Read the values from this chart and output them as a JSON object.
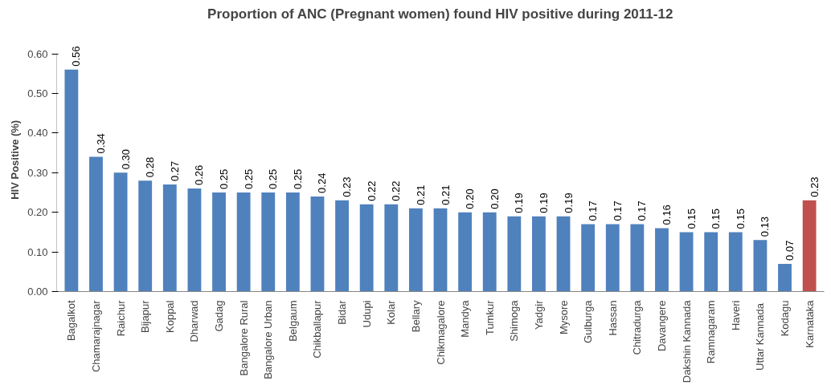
{
  "chart_data": {
    "type": "bar",
    "title": "Proportion of ANC (Pregnant women) found HIV positive during 2011-12",
    "ylabel": "HIV Positive  (%)",
    "categories": [
      "Bagalkot",
      "Chamarajnagar",
      "Raichur",
      "Bijapur",
      "Koppal",
      "Dharwad",
      "Gadag",
      "Bangalore Rural",
      "Bangalore Urban",
      "Belgaum",
      "Chikballapur",
      "Bidar",
      "Udupi",
      "Kolar",
      "Bellary",
      "Chikmagalore",
      "Mandya",
      "Tumkur",
      "Shimoga",
      "Yadgir",
      "Mysore",
      "Gulburga",
      "Hassan",
      "Chitradurga",
      "Davangere",
      "Dakshin Kannada",
      "Ramnagaram",
      "Haveri",
      "Uttar  Kannada",
      "Kodagu",
      "Karnataka"
    ],
    "values": [
      0.56,
      0.34,
      0.3,
      0.28,
      0.27,
      0.26,
      0.25,
      0.25,
      0.25,
      0.25,
      0.24,
      0.23,
      0.22,
      0.22,
      0.21,
      0.21,
      0.2,
      0.2,
      0.19,
      0.19,
      0.19,
      0.17,
      0.17,
      0.17,
      0.16,
      0.15,
      0.15,
      0.15,
      0.13,
      0.07,
      0.23
    ],
    "value_labels": [
      "0.56",
      "0.34",
      "0.30",
      "0.28",
      "0.27",
      "0.26",
      "0.25",
      "0.25",
      "0.25",
      "0.25",
      "0.24",
      "0.23",
      "0.22",
      "0.22",
      "0.21",
      "0.21",
      "0.20",
      "0.20",
      "0.19",
      "0.19",
      "0.19",
      "0.17",
      "0.17",
      "0.17",
      "0.16",
      "0.15",
      "0.15",
      "0.15",
      "0.13",
      "0.07",
      "0.23"
    ],
    "colors": [
      "#4f81bd",
      "#4f81bd",
      "#4f81bd",
      "#4f81bd",
      "#4f81bd",
      "#4f81bd",
      "#4f81bd",
      "#4f81bd",
      "#4f81bd",
      "#4f81bd",
      "#4f81bd",
      "#4f81bd",
      "#4f81bd",
      "#4f81bd",
      "#4f81bd",
      "#4f81bd",
      "#4f81bd",
      "#4f81bd",
      "#4f81bd",
      "#4f81bd",
      "#4f81bd",
      "#4f81bd",
      "#4f81bd",
      "#4f81bd",
      "#4f81bd",
      "#4f81bd",
      "#4f81bd",
      "#4f81bd",
      "#4f81bd",
      "#4f81bd",
      "#c0504d"
    ],
    "ylim": [
      0,
      0.6
    ],
    "yticks": [
      {
        "value": 0,
        "label": "0.00"
      },
      {
        "value": 0.1,
        "label": "0.10"
      },
      {
        "value": 0.2,
        "label": "0.20"
      },
      {
        "value": 0.3,
        "label": "0.30"
      },
      {
        "value": 0.4,
        "label": "0.40"
      },
      {
        "value": 0.5,
        "label": "0.50"
      },
      {
        "value": 0.6,
        "label": "0.60"
      }
    ],
    "grid": false
  }
}
